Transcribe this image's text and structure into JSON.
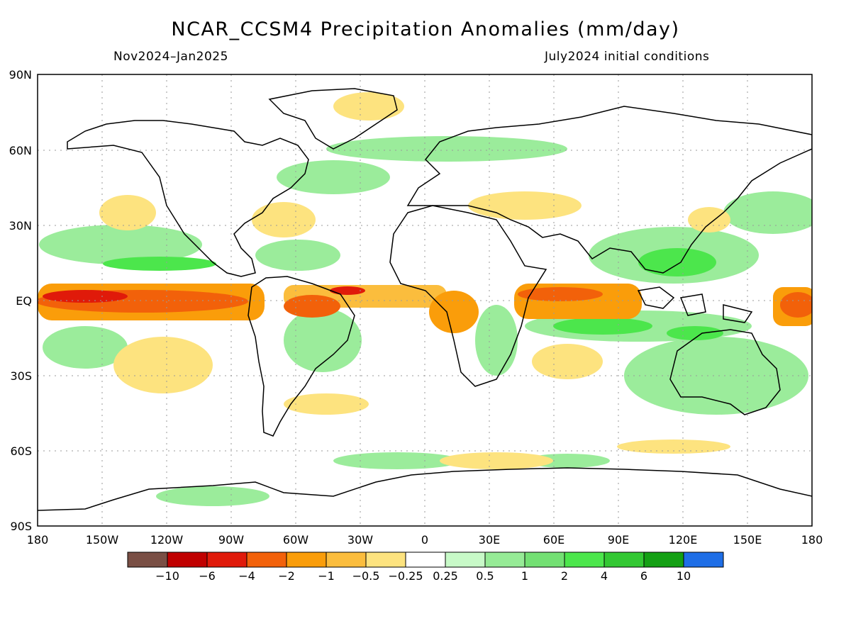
{
  "header": {
    "title": "NCAR_CCSM4 Precipitation Anomalies (mm/day)",
    "period": "Nov2024–Jan2025",
    "init": "July2024 initial conditions"
  },
  "axes": {
    "lat_labels": [
      "90N",
      "60N",
      "30N",
      "EQ",
      "30S",
      "60S",
      "90S"
    ],
    "lon_labels": [
      "180",
      "150W",
      "120W",
      "90W",
      "60W",
      "30W",
      "0",
      "30E",
      "60E",
      "90E",
      "120E",
      "150E",
      "180"
    ]
  },
  "legend": {
    "colors": [
      "#7a4f45",
      "#c00000",
      "#e01a0a",
      "#f2610a",
      "#fa9d0a",
      "#fbbd3d",
      "#fde37f",
      "#ffffff",
      "#c8fac8",
      "#96eb96",
      "#73e073",
      "#4ce64c",
      "#33c833",
      "#14a014",
      "#1e6ee6"
    ],
    "labels": [
      "−10",
      "−6",
      "−4",
      "−2",
      "−1",
      "−0.5",
      "−0.25",
      "0.25",
      "0.5",
      "1",
      "2",
      "4",
      "6",
      "10"
    ]
  },
  "colors": {
    "dry_strong": "#e0320a",
    "dry": "#fbbd3d",
    "wet": "#73e073",
    "wet_light": "#c8fac8"
  }
}
